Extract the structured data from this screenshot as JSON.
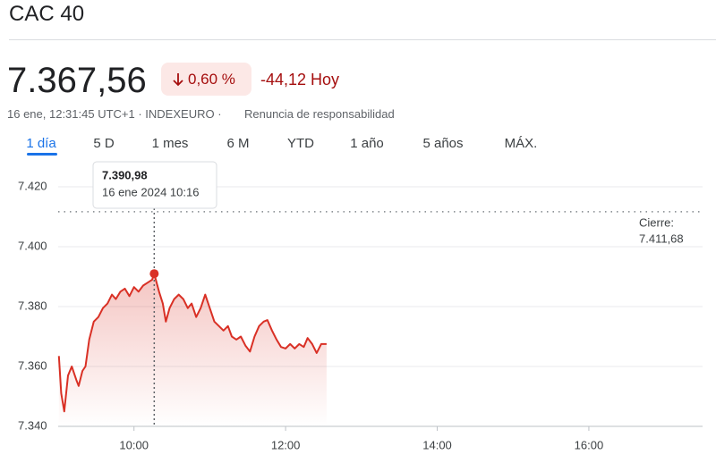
{
  "header": {
    "title": "CAC 40",
    "price": "7.367,56",
    "change_pct": "0,60 %",
    "change_abs": "-44,12 Hoy",
    "meta": [
      "16 ene, 12:31:45 UTC+1 · INDEXEURO ·",
      "Renuncia de responsabilidad"
    ],
    "tabs": [
      "1 día",
      "5 D",
      "1 mes",
      "6 M",
      "YTD",
      "1 año",
      "5 años",
      "MÁX."
    ],
    "active_tab": 0
  },
  "chart_data": {
    "type": "line",
    "color": "#d93025",
    "grid": true,
    "x": [
      9.01,
      9.04,
      9.08,
      9.13,
      9.18,
      9.24,
      9.27,
      9.32,
      9.36,
      9.41,
      9.47,
      9.53,
      9.59,
      9.65,
      9.71,
      9.76,
      9.82,
      9.88,
      9.94,
      10.0,
      10.06,
      10.12,
      10.18,
      10.24,
      10.267,
      10.33,
      10.38,
      10.42,
      10.47,
      10.53,
      10.59,
      10.65,
      10.71,
      10.76,
      10.82,
      10.88,
      10.94,
      11.0,
      11.06,
      11.12,
      11.18,
      11.24,
      11.29,
      11.35,
      11.41,
      11.47,
      11.53,
      11.59,
      11.65,
      11.71,
      11.76,
      11.82,
      11.88,
      11.94,
      12.0,
      12.06,
      12.12,
      12.18,
      12.24,
      12.29,
      12.35,
      12.41,
      12.47,
      12.54
    ],
    "values": [
      7363.5,
      7351,
      7345,
      7357,
      7360,
      7355.5,
      7353.5,
      7358.5,
      7360,
      7369,
      7375,
      7376.5,
      7379.5,
      7381,
      7384,
      7382.5,
      7385,
      7386,
      7383.5,
      7386.5,
      7385,
      7387,
      7388,
      7389,
      7390.98,
      7385,
      7381,
      7375,
      7379.5,
      7382.5,
      7384,
      7382.5,
      7379.5,
      7381,
      7376.5,
      7379.5,
      7384,
      7379.5,
      7375,
      7373.5,
      7372,
      7373.5,
      7370,
      7369,
      7370,
      7367,
      7365,
      7370,
      7373.5,
      7375,
      7375.5,
      7372,
      7369,
      7366.5,
      7366,
      7367.5,
      7366,
      7367.5,
      7366.5,
      7369.5,
      7367.5,
      7364.5,
      7367.5,
      7367.5
    ],
    "xlim": [
      9,
      17.5
    ],
    "xticks": [
      {
        "value": 10,
        "label": "10:00"
      },
      {
        "value": 12,
        "label": "12:00"
      },
      {
        "value": 14,
        "label": "14:00"
      },
      {
        "value": 16,
        "label": "16:00"
      }
    ],
    "ylim": [
      7340,
      7420
    ],
    "yticks": [
      {
        "value": 7340,
        "label": "7.340"
      },
      {
        "value": 7360,
        "label": "7.360"
      },
      {
        "value": 7380,
        "label": "7.380"
      },
      {
        "value": 7400,
        "label": "7.400"
      },
      {
        "value": 7420,
        "label": "7.420"
      }
    ],
    "reference_line": {
      "value": 7411.68,
      "label": "Cierre:",
      "value_label": "7.411,68"
    },
    "highlight": {
      "x": 10.267,
      "value": 7390.98,
      "value_label": "7.390,98",
      "x_label": "16 ene 2024 10:16"
    }
  }
}
